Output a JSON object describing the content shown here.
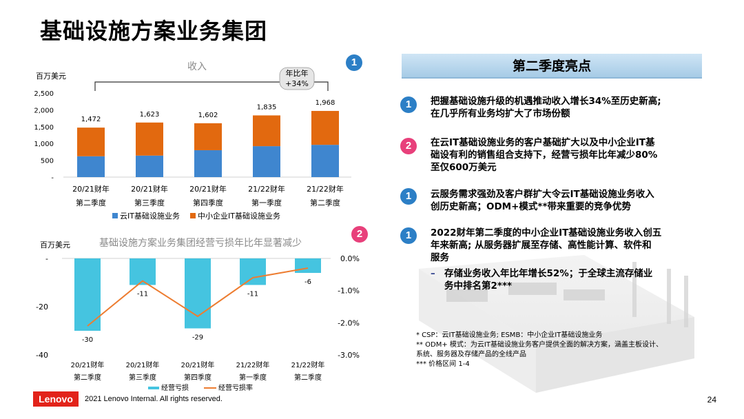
{
  "title": "基础设施方案业务集团",
  "chart_data": [
    {
      "type": "bar",
      "stacked": true,
      "title": "收入",
      "unit_label": "百万美元",
      "categories": [
        [
          "20/21财年",
          "第二季度"
        ],
        [
          "20/21财年",
          "第三季度"
        ],
        [
          "20/21财年",
          "第四季度"
        ],
        [
          "21/22财年",
          "第一季度"
        ],
        [
          "21/22财年",
          "第二季度"
        ]
      ],
      "series": [
        {
          "name": "云IT基础设施业务",
          "color": "#3f86cf",
          "values": [
            620,
            640,
            800,
            920,
            960
          ]
        },
        {
          "name": "中小企业IT基础设施业务",
          "color": "#e2690f",
          "values": [
            852,
            983,
            802,
            915,
            1008
          ]
        }
      ],
      "totals": [
        1472,
        1623,
        1602,
        1835,
        1968
      ],
      "total_labels": [
        "1,472",
        "1,623",
        "1,602",
        "1,835",
        "1,968"
      ],
      "yticks": [
        "2,500",
        "2,000",
        "1,500",
        "1,000",
        "500",
        "-"
      ],
      "ylim": [
        0,
        2500
      ],
      "annotation": {
        "badge_line1": "年比年",
        "badge_line2": "+34%",
        "marker": "1"
      }
    },
    {
      "type": "bar+line",
      "title": "基础设施方案业务集团经营亏损年比年显著减少",
      "unit_label": "百万美元",
      "categories": [
        [
          "20/21财年",
          "第二季度"
        ],
        [
          "20/21财年",
          "第三季度"
        ],
        [
          "20/21财年",
          "第四季度"
        ],
        [
          "21/22财年",
          "第一季度"
        ],
        [
          "21/22财年",
          "第二季度"
        ]
      ],
      "series": [
        {
          "name": "经营亏损",
          "type": "bar",
          "color": "#45c4e0",
          "values": [
            -30,
            -11,
            -29,
            -11,
            -6
          ]
        },
        {
          "name": "经营亏损率",
          "type": "line",
          "color": "#ed7d31",
          "values": [
            -2.1,
            -0.7,
            -1.8,
            -0.6,
            -0.3
          ]
        }
      ],
      "bar_labels": [
        "-30",
        "-11",
        "-29",
        "-11",
        "-6"
      ],
      "yticks_left": [
        "-",
        "-20",
        "-40"
      ],
      "ylim_left": [
        -40,
        0
      ],
      "yticks_right": [
        "0.0%",
        "-1.0%",
        "-2.0%",
        "-3.0%"
      ],
      "ylim_right": [
        -3.0,
        0.0
      ],
      "annotation": {
        "marker": "2"
      }
    }
  ],
  "highlights": {
    "header": "第二季度亮点",
    "items": [
      {
        "marker": "1",
        "lines": [
          "把握基础设施升级的机遇推动收入增长34%至历史新高;",
          "在几乎所有业务均扩大了市场份额"
        ]
      },
      {
        "marker": "2",
        "lines": [
          "在云IT基础设施业务的客户基础扩大以及中小企业IT基",
          "础设有利的销售组合支持下，经营亏损年比年减少80%",
          "至仅600万美元"
        ]
      },
      {
        "marker": "1",
        "lines": [
          "云服务需求强劲及客户群扩大令云IT基础设施业务收入",
          "创历史新高；ODM+模式**带来重要的竞争优势"
        ]
      },
      {
        "marker": "1",
        "lines": [
          "2022财年第二季度的中小企业IT基础设施业务收入创五",
          "年来新高; 从服务器扩展至存储、高性能计算、软件和",
          "服务"
        ]
      }
    ],
    "sub_dash": "–",
    "sub_lines": [
      "存储业务收入年比年增长52%；于全球主流存储业",
      "务中排名第2***"
    ]
  },
  "footnotes": [
    "* CSP：云IT基础设施业务; ESMB：中小企业IT基础设施业务",
    "** ODM+ 模式：为云IT基础设施业务客户提供全面的解决方案，涵盖主板设计、",
    "系统、服务器及存储产品的全线产品",
    "*** 价格区间 1-4"
  ],
  "footer": {
    "logo": "Lenovo",
    "copyright": "2021 Lenovo Internal. All rights reserved.",
    "page_number": "24"
  }
}
